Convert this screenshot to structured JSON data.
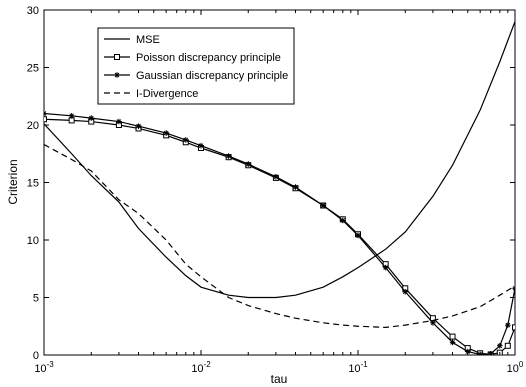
{
  "chart_data": {
    "type": "line",
    "title": "",
    "xlabel": "tau",
    "ylabel": "Criterion",
    "xscale": "log",
    "xlim": [
      0.001,
      1
    ],
    "ylim": [
      0,
      30
    ],
    "grid": false,
    "legend_position": "top-left",
    "x_ticks": [
      {
        "value": 0.001,
        "base": "10",
        "exp": "-3"
      },
      {
        "value": 0.01,
        "base": "10",
        "exp": "-2"
      },
      {
        "value": 0.1,
        "base": "10",
        "exp": "-1"
      },
      {
        "value": 1,
        "base": "10",
        "exp": "0"
      }
    ],
    "y_ticks": [
      "0",
      "5",
      "10",
      "15",
      "20",
      "25",
      "30"
    ],
    "y_tick_values": [
      0,
      5,
      10,
      15,
      20,
      25,
      30
    ],
    "series": [
      {
        "name": "MSE",
        "style": "solid",
        "marker": "none",
        "color": "#000000",
        "x": [
          0.001,
          0.0015,
          0.002,
          0.003,
          0.004,
          0.006,
          0.008,
          0.01,
          0.015,
          0.02,
          0.03,
          0.04,
          0.06,
          0.08,
          0.1,
          0.15,
          0.2,
          0.3,
          0.4,
          0.6,
          0.8,
          1
        ],
        "y": [
          20.1,
          17.5,
          15.6,
          13.3,
          11.0,
          8.5,
          6.9,
          5.9,
          5.2,
          5.0,
          5.0,
          5.2,
          5.9,
          6.8,
          7.6,
          9.2,
          10.7,
          13.8,
          16.5,
          21.3,
          25.5,
          29.0
        ]
      },
      {
        "name": "Poisson discrepancy principle",
        "style": "solid",
        "marker": "square",
        "color": "#000000",
        "x": [
          0.001,
          0.0015,
          0.002,
          0.003,
          0.004,
          0.006,
          0.008,
          0.01,
          0.015,
          0.02,
          0.03,
          0.04,
          0.06,
          0.08,
          0.1,
          0.15,
          0.2,
          0.3,
          0.4,
          0.5,
          0.6,
          0.7,
          0.8,
          0.9,
          1
        ],
        "y": [
          20.5,
          20.4,
          20.3,
          20.0,
          19.7,
          19.1,
          18.5,
          18.0,
          17.2,
          16.5,
          15.4,
          14.5,
          13.0,
          11.8,
          10.5,
          7.9,
          5.8,
          3.2,
          1.6,
          0.6,
          0.15,
          0.05,
          0.2,
          0.8,
          2.4
        ]
      },
      {
        "name": "Gaussian discrepancy principle",
        "style": "solid",
        "marker": "star",
        "color": "#000000",
        "x": [
          0.001,
          0.0015,
          0.002,
          0.003,
          0.004,
          0.006,
          0.008,
          0.01,
          0.015,
          0.02,
          0.03,
          0.04,
          0.06,
          0.08,
          0.1,
          0.15,
          0.2,
          0.3,
          0.4,
          0.5,
          0.6,
          0.7,
          0.8,
          0.9,
          1
        ],
        "y": [
          21.0,
          20.8,
          20.6,
          20.3,
          19.9,
          19.3,
          18.7,
          18.2,
          17.3,
          16.6,
          15.5,
          14.6,
          13.0,
          11.7,
          10.4,
          7.6,
          5.5,
          2.8,
          1.1,
          0.3,
          0.05,
          0.1,
          0.8,
          2.6,
          5.8
        ]
      },
      {
        "name": "I-Divergence",
        "style": "dashed",
        "marker": "none",
        "color": "#000000",
        "x": [
          0.001,
          0.0015,
          0.002,
          0.003,
          0.004,
          0.006,
          0.008,
          0.01,
          0.015,
          0.02,
          0.03,
          0.04,
          0.06,
          0.08,
          0.1,
          0.15,
          0.2,
          0.3,
          0.4,
          0.6,
          0.8,
          1
        ],
        "y": [
          18.3,
          17.0,
          16.0,
          13.5,
          12.3,
          10.0,
          7.9,
          6.8,
          5.0,
          4.3,
          3.6,
          3.2,
          2.8,
          2.6,
          2.5,
          2.4,
          2.6,
          3.0,
          3.4,
          4.2,
          5.2,
          6.0
        ]
      }
    ]
  }
}
